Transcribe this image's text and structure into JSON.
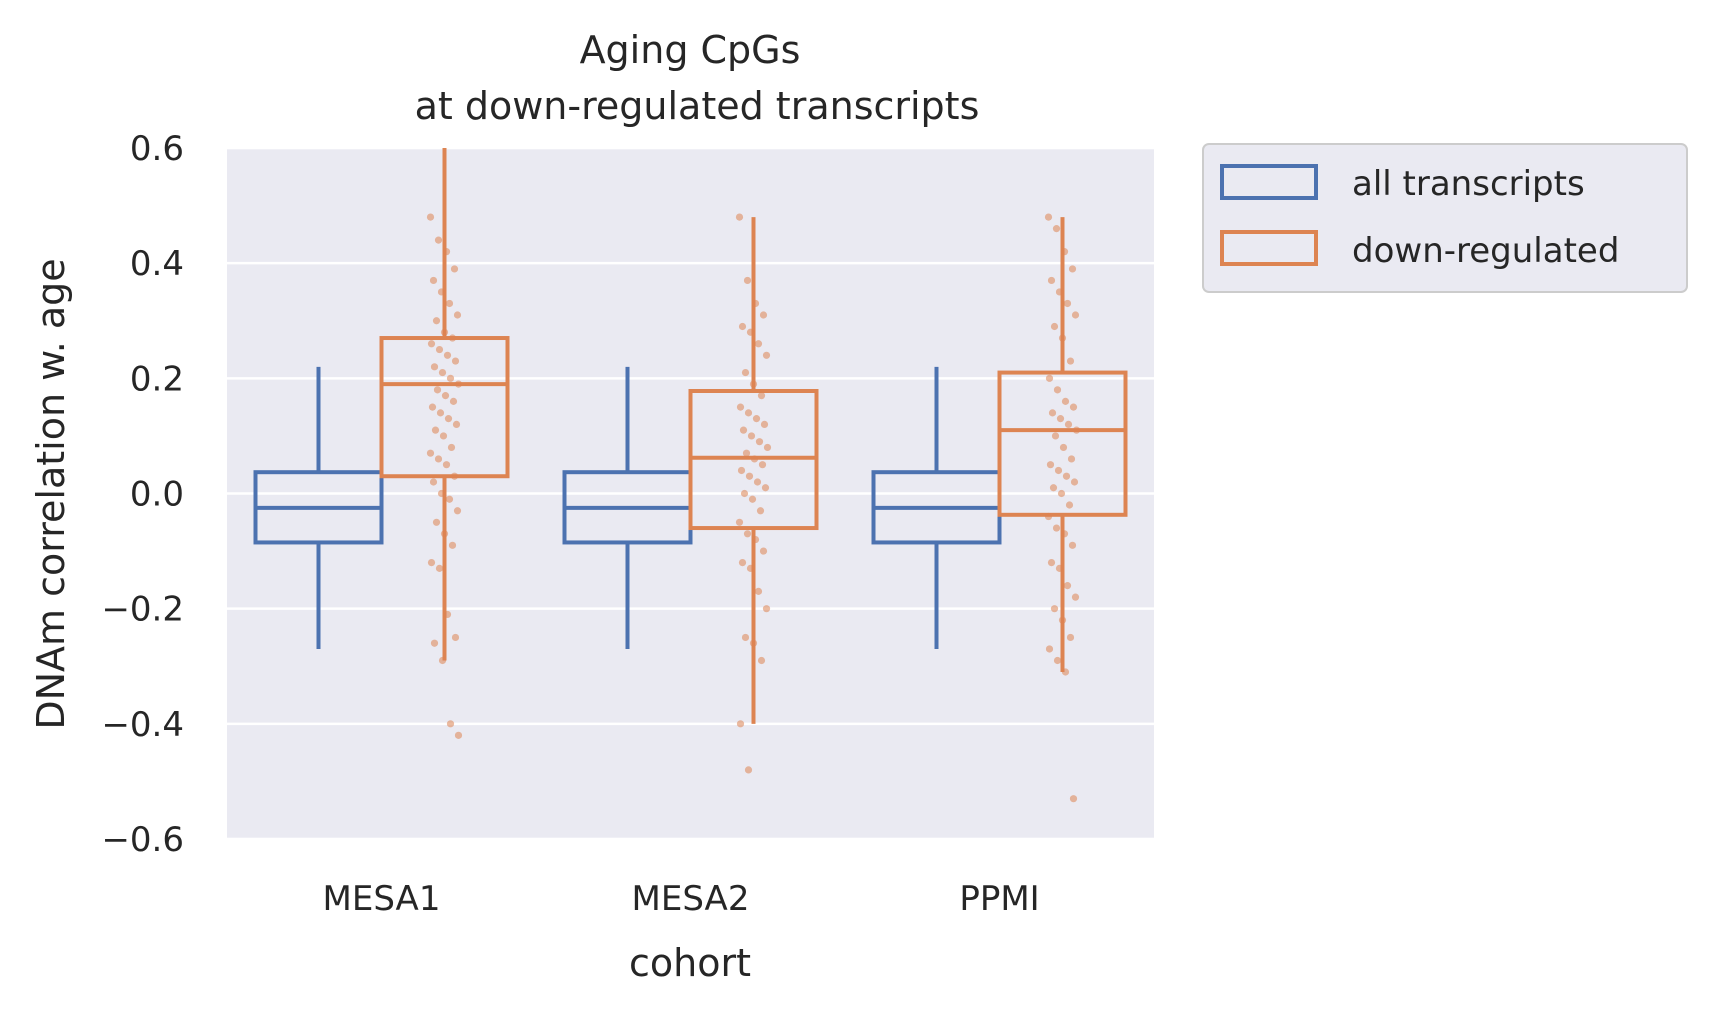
{
  "chart_data": {
    "type": "box",
    "title": "Aging CpGs",
    "subtitle": "at down-regulated transcripts",
    "xlabel": "cohort",
    "ylabel": "DNAm correlation w. age",
    "ylim": [
      -0.6,
      0.6
    ],
    "yticks": [
      0.6,
      0.4,
      0.2,
      0.0,
      -0.2,
      -0.4,
      -0.6
    ],
    "ytick_labels": [
      "0.6",
      "0.4",
      "0.2",
      "0.0",
      "−0.2",
      "−0.4",
      "−0.6"
    ],
    "grid": true,
    "legend_position": "outside-right-top",
    "categories": [
      "MESA1",
      "MESA2",
      "PPMI"
    ],
    "series": [
      {
        "name": "all transcripts",
        "color": "#4c72b0",
        "boxes": [
          {
            "q1": -0.085,
            "median": -0.025,
            "q3": 0.037,
            "whisker_low": -0.27,
            "whisker_high": 0.22
          },
          {
            "q1": -0.085,
            "median": -0.025,
            "q3": 0.037,
            "whisker_low": -0.27,
            "whisker_high": 0.22
          },
          {
            "q1": -0.085,
            "median": -0.025,
            "q3": 0.037,
            "whisker_low": -0.27,
            "whisker_high": 0.22
          }
        ]
      },
      {
        "name": "down-regulated",
        "color": "#dd8452",
        "boxes": [
          {
            "q1": 0.03,
            "median": 0.19,
            "q3": 0.27,
            "whisker_low": -0.29,
            "whisker_high": 0.6
          },
          {
            "q1": -0.06,
            "median": 0.062,
            "q3": 0.178,
            "whisker_low": -0.4,
            "whisker_high": 0.48
          },
          {
            "q1": -0.037,
            "median": 0.11,
            "q3": 0.21,
            "whisker_low": -0.31,
            "whisker_high": 0.48
          }
        ],
        "points": [
          [
            0.48,
            0.44,
            0.42,
            0.39,
            0.37,
            0.35,
            0.33,
            0.31,
            0.3,
            0.28,
            0.27,
            0.26,
            0.25,
            0.24,
            0.23,
            0.22,
            0.21,
            0.2,
            0.19,
            0.18,
            0.17,
            0.16,
            0.15,
            0.14,
            0.13,
            0.12,
            0.11,
            0.1,
            0.08,
            0.07,
            0.06,
            0.05,
            0.03,
            0.02,
            0.0,
            -0.01,
            -0.03,
            -0.05,
            -0.07,
            -0.09,
            -0.12,
            -0.13,
            -0.21,
            -0.25,
            -0.26,
            -0.29,
            -0.4,
            -0.42
          ],
          [
            0.48,
            0.37,
            0.33,
            0.31,
            0.29,
            0.28,
            0.26,
            0.24,
            0.21,
            0.19,
            0.17,
            0.15,
            0.14,
            0.13,
            0.12,
            0.11,
            0.1,
            0.09,
            0.08,
            0.07,
            0.06,
            0.05,
            0.04,
            0.03,
            0.02,
            0.01,
            0.0,
            -0.01,
            -0.03,
            -0.05,
            -0.07,
            -0.08,
            -0.1,
            -0.12,
            -0.13,
            -0.17,
            -0.2,
            -0.25,
            -0.26,
            -0.29,
            -0.4,
            -0.48
          ],
          [
            0.48,
            0.46,
            0.42,
            0.39,
            0.37,
            0.35,
            0.33,
            0.31,
            0.29,
            0.27,
            0.23,
            0.2,
            0.18,
            0.16,
            0.15,
            0.14,
            0.13,
            0.12,
            0.11,
            0.1,
            0.08,
            0.06,
            0.05,
            0.04,
            0.03,
            0.02,
            0.01,
            0.0,
            -0.02,
            -0.04,
            -0.06,
            -0.07,
            -0.09,
            -0.12,
            -0.13,
            -0.16,
            -0.18,
            -0.2,
            -0.22,
            -0.25,
            -0.27,
            -0.29,
            -0.31,
            -0.53
          ]
        ]
      }
    ]
  }
}
